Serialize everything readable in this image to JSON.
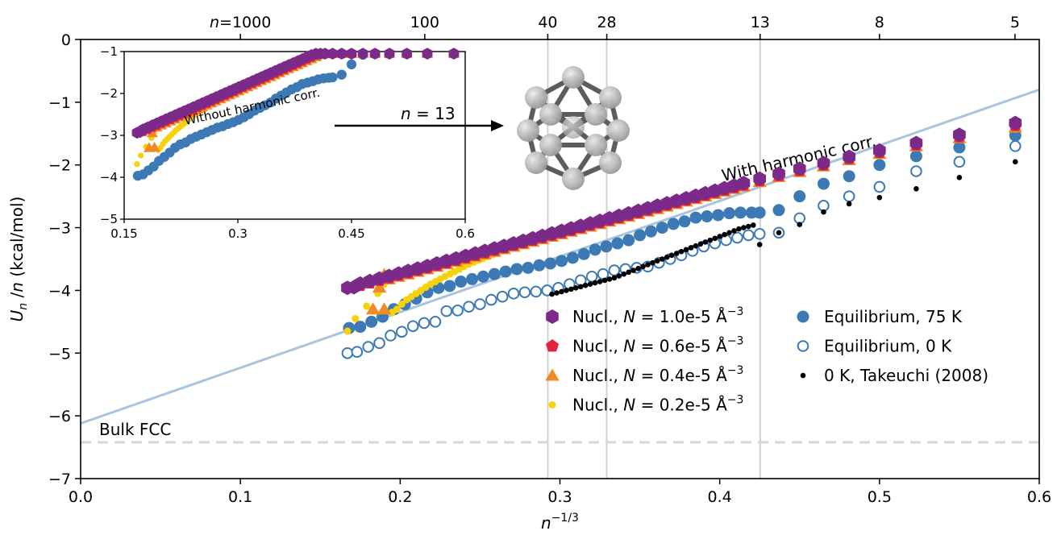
{
  "chart_data": {
    "type": "scatter",
    "xlabel": "n",
    "xlabel_sup": "−1/3",
    "ylabel": "U",
    "ylabel_sub": "n",
    "ylabel_rest": " /n (kcal/mol)",
    "xlim": [
      0,
      0.6
    ],
    "ylim": [
      -7,
      0
    ],
    "xticks": [
      "0.0",
      "0.1",
      "0.2",
      "0.3",
      "0.4",
      "0.5",
      "0.6"
    ],
    "yticks": [
      "0",
      "−1",
      "−2",
      "−3",
      "−4",
      "−5",
      "−6",
      "−7"
    ],
    "top_axis": {
      "label_prefix": "n",
      "label_eq": "=",
      "ticks": [
        {
          "label": "1000",
          "x": 0.1
        },
        {
          "label": "100",
          "x": 0.2154
        },
        {
          "label": "40",
          "x": 0.2924
        },
        {
          "label": "28",
          "x": 0.3293
        },
        {
          "label": "13",
          "x": 0.4253
        },
        {
          "label": "8",
          "x": 0.5
        },
        {
          "label": "5",
          "x": 0.5848
        }
      ]
    },
    "vlines": [
      0.2924,
      0.3293,
      0.4253
    ],
    "bulk_fcc": {
      "label": "Bulk FCC",
      "y": -6.42
    },
    "fit_line": {
      "x": [
        0,
        0.6
      ],
      "y": [
        -6.12,
        -0.8
      ],
      "label": "With harmonic corr."
    },
    "series": [
      {
        "name": "Nucl., N = 1.0e-5 Å⁻³",
        "color": "#7b2a8a",
        "marker": "hexagon",
        "x": [
          0.167,
          0.171,
          0.175,
          0.181,
          0.187,
          0.193,
          0.199,
          0.205,
          0.211,
          0.217,
          0.223,
          0.229,
          0.235,
          0.241,
          0.247,
          0.253,
          0.259,
          0.265,
          0.271,
          0.277,
          0.283,
          0.289,
          0.295,
          0.301,
          0.307,
          0.313,
          0.319,
          0.325,
          0.331,
          0.337,
          0.343,
          0.349,
          0.355,
          0.361,
          0.367,
          0.373,
          0.379,
          0.385,
          0.391,
          0.397,
          0.403,
          0.409,
          0.415,
          0.425,
          0.437,
          0.45,
          0.465,
          0.481,
          0.5,
          0.523,
          0.55,
          0.585
        ],
        "y": [
          -3.96,
          -3.95,
          -3.89,
          -3.85,
          -3.81,
          -3.77,
          -3.73,
          -3.69,
          -3.65,
          -3.61,
          -3.57,
          -3.53,
          -3.49,
          -3.45,
          -3.41,
          -3.37,
          -3.33,
          -3.29,
          -3.25,
          -3.21,
          -3.17,
          -3.13,
          -3.09,
          -3.05,
          -3.01,
          -2.97,
          -2.93,
          -2.89,
          -2.85,
          -2.81,
          -2.77,
          -2.73,
          -2.69,
          -2.65,
          -2.61,
          -2.57,
          -2.53,
          -2.49,
          -2.45,
          -2.41,
          -2.37,
          -2.33,
          -2.29,
          -2.22,
          -2.14,
          -2.06,
          -1.97,
          -1.87,
          -1.77,
          -1.65,
          -1.52,
          -1.33
        ]
      },
      {
        "name": "Nucl., N = 0.6e-5 Å⁻³",
        "color": "#e3223c",
        "marker": "pentagon",
        "x": [
          0.175,
          0.181,
          0.187,
          0.193,
          0.199,
          0.205,
          0.211,
          0.217,
          0.223,
          0.229,
          0.235,
          0.241,
          0.247,
          0.253,
          0.259,
          0.265,
          0.271,
          0.277,
          0.283,
          0.289,
          0.295,
          0.301,
          0.307,
          0.313,
          0.319,
          0.325,
          0.331,
          0.337,
          0.343,
          0.349,
          0.355,
          0.361,
          0.367,
          0.373,
          0.379,
          0.385,
          0.391,
          0.397,
          0.403,
          0.409,
          0.415,
          0.425,
          0.437,
          0.45,
          0.465,
          0.481,
          0.5,
          0.523,
          0.55,
          0.585
        ],
        "y": [
          -3.92,
          -3.88,
          -3.84,
          -3.8,
          -3.76,
          -3.72,
          -3.68,
          -3.64,
          -3.6,
          -3.56,
          -3.52,
          -3.48,
          -3.44,
          -3.4,
          -3.36,
          -3.32,
          -3.28,
          -3.24,
          -3.2,
          -3.16,
          -3.12,
          -3.08,
          -3.04,
          -3.0,
          -2.96,
          -2.92,
          -2.88,
          -2.84,
          -2.8,
          -2.76,
          -2.72,
          -2.68,
          -2.64,
          -2.6,
          -2.56,
          -2.52,
          -2.48,
          -2.44,
          -2.4,
          -2.36,
          -2.32,
          -2.25,
          -2.17,
          -2.09,
          -2.0,
          -1.9,
          -1.8,
          -1.68,
          -1.55,
          -1.37
        ]
      },
      {
        "name": "Nucl., N = 0.4e-5 Å⁻³",
        "color": "#f28a24",
        "marker": "triangle",
        "x": [
          0.183,
          0.187,
          0.19,
          0.19,
          0.193,
          0.199,
          0.205,
          0.211,
          0.217,
          0.223,
          0.229,
          0.235,
          0.241,
          0.247,
          0.253,
          0.259,
          0.265,
          0.271,
          0.277,
          0.283,
          0.289,
          0.295,
          0.301,
          0.307,
          0.313,
          0.319,
          0.325,
          0.331,
          0.337,
          0.343,
          0.349,
          0.355,
          0.361,
          0.367,
          0.373,
          0.379,
          0.385,
          0.391,
          0.397,
          0.403,
          0.409,
          0.415,
          0.425,
          0.437,
          0.45,
          0.465,
          0.481,
          0.5,
          0.523,
          0.55,
          0.585
        ],
        "y": [
          -4.3,
          -3.95,
          -3.75,
          -4.3,
          -3.82,
          -3.78,
          -3.74,
          -3.7,
          -3.66,
          -3.62,
          -3.58,
          -3.54,
          -3.5,
          -3.46,
          -3.42,
          -3.38,
          -3.34,
          -3.3,
          -3.26,
          -3.22,
          -3.18,
          -3.14,
          -3.1,
          -3.06,
          -3.02,
          -2.98,
          -2.94,
          -2.9,
          -2.86,
          -2.82,
          -2.78,
          -2.74,
          -2.7,
          -2.66,
          -2.62,
          -2.58,
          -2.54,
          -2.5,
          -2.46,
          -2.42,
          -2.38,
          -2.34,
          -2.27,
          -2.19,
          -2.11,
          -2.02,
          -1.92,
          -1.82,
          -1.7,
          -1.57,
          -1.4
        ]
      },
      {
        "name": "Nucl., N = 0.2e-5 Å⁻³",
        "color": "#f6d20a",
        "marker": "dot",
        "x": [
          0.195,
          0.198,
          0.201,
          0.204,
          0.207,
          0.21,
          0.213,
          0.216,
          0.219,
          0.222,
          0.225,
          0.228,
          0.231,
          0.234,
          0.237,
          0.24,
          0.243,
          0.246,
          0.249,
          0.252,
          0.255,
          0.258,
          0.261,
          0.264,
          0.267,
          0.27,
          0.273,
          0.276,
          0.279,
          0.282,
          0.285,
          0.288,
          0.291,
          0.294,
          0.297,
          0.3,
          0.303,
          0.306,
          0.309,
          0.312,
          0.315,
          0.318,
          0.321,
          0.324,
          0.327,
          0.33,
          0.333,
          0.336,
          0.339,
          0.342,
          0.345,
          0.348,
          0.351,
          0.354,
          0.357,
          0.36,
          0.363,
          0.366,
          0.369,
          0.372,
          0.375,
          0.378,
          0.381,
          0.384,
          0.387,
          0.39,
          0.393,
          0.396,
          0.399,
          0.402,
          0.405,
          0.408,
          0.411,
          0.414,
          0.417,
          0.425,
          0.437,
          0.45,
          0.465,
          0.481,
          0.5,
          0.523,
          0.55,
          0.585,
          0.167,
          0.172,
          0.179,
          0.186,
          0.19
        ],
        "y": [
          -4.35,
          -4.3,
          -4.22,
          -4.15,
          -4.1,
          -4.05,
          -4.0,
          -3.95,
          -3.9,
          -3.86,
          -3.82,
          -3.78,
          -3.74,
          -3.7,
          -3.66,
          -3.62,
          -3.58,
          -3.55,
          -3.52,
          -3.49,
          -3.46,
          -3.43,
          -3.4,
          -3.37,
          -3.34,
          -3.31,
          -3.28,
          -3.25,
          -3.22,
          -3.2,
          -3.18,
          -3.16,
          -3.14,
          -3.12,
          -3.1,
          -3.08,
          -3.06,
          -3.04,
          -3.02,
          -3.0,
          -2.98,
          -2.96,
          -2.94,
          -2.92,
          -2.9,
          -2.88,
          -2.86,
          -2.84,
          -2.82,
          -2.8,
          -2.78,
          -2.76,
          -2.74,
          -2.72,
          -2.7,
          -2.68,
          -2.66,
          -2.64,
          -2.62,
          -2.6,
          -2.58,
          -2.56,
          -2.54,
          -2.52,
          -2.5,
          -2.48,
          -2.46,
          -2.44,
          -2.42,
          -2.4,
          -2.38,
          -2.36,
          -2.34,
          -2.32,
          -2.3,
          -2.28,
          -2.21,
          -2.13,
          -2.04,
          -1.95,
          -1.84,
          -1.72,
          -1.59,
          -1.43,
          -4.65,
          -4.45,
          -4.25,
          -4.05,
          -3.9
        ]
      },
      {
        "name": "Equilibrium, 75 K",
        "color": "#3d7ab5",
        "marker": "circle",
        "x": [
          0.168,
          0.175,
          0.182,
          0.189,
          0.196,
          0.203,
          0.21,
          0.217,
          0.224,
          0.231,
          0.238,
          0.245,
          0.252,
          0.259,
          0.266,
          0.273,
          0.28,
          0.287,
          0.294,
          0.301,
          0.308,
          0.315,
          0.322,
          0.329,
          0.336,
          0.343,
          0.35,
          0.357,
          0.364,
          0.371,
          0.378,
          0.385,
          0.392,
          0.399,
          0.406,
          0.413,
          0.42,
          0.425,
          0.437,
          0.45,
          0.465,
          0.481,
          0.5,
          0.523,
          0.55,
          0.585
        ],
        "y": [
          -4.6,
          -4.58,
          -4.5,
          -4.42,
          -4.3,
          -4.22,
          -4.13,
          -4.03,
          -3.96,
          -3.93,
          -3.86,
          -3.82,
          -3.78,
          -3.74,
          -3.7,
          -3.66,
          -3.64,
          -3.6,
          -3.57,
          -3.53,
          -3.48,
          -3.42,
          -3.35,
          -3.3,
          -3.25,
          -3.2,
          -3.12,
          -3.06,
          -3.0,
          -2.94,
          -2.9,
          -2.84,
          -2.82,
          -2.8,
          -2.77,
          -2.76,
          -2.76,
          -2.76,
          -2.72,
          -2.5,
          -2.3,
          -2.18,
          -2.0,
          -1.86,
          -1.72,
          -1.53
        ]
      },
      {
        "name": "Equilibrium, 0 K",
        "color": "#3d7ab5",
        "marker": "circle-open",
        "x": [
          0.167,
          0.173,
          0.18,
          0.187,
          0.194,
          0.201,
          0.208,
          0.215,
          0.222,
          0.229,
          0.236,
          0.243,
          0.25,
          0.257,
          0.264,
          0.271,
          0.278,
          0.285,
          0.292,
          0.299,
          0.306,
          0.313,
          0.32,
          0.327,
          0.334,
          0.341,
          0.348,
          0.355,
          0.362,
          0.369,
          0.376,
          0.383,
          0.39,
          0.397,
          0.404,
          0.411,
          0.418,
          0.425,
          0.437,
          0.45,
          0.465,
          0.481,
          0.5,
          0.523,
          0.55,
          0.585
        ],
        "y": [
          -5.0,
          -4.98,
          -4.9,
          -4.84,
          -4.72,
          -4.66,
          -4.57,
          -4.52,
          -4.5,
          -4.33,
          -4.32,
          -4.26,
          -4.22,
          -4.15,
          -4.1,
          -4.05,
          -4.03,
          -4.02,
          -4.0,
          -3.96,
          -3.9,
          -3.84,
          -3.78,
          -3.74,
          -3.68,
          -3.66,
          -3.64,
          -3.62,
          -3.56,
          -3.5,
          -3.44,
          -3.37,
          -3.3,
          -3.25,
          -3.2,
          -3.16,
          -3.12,
          -3.1,
          -3.08,
          -2.85,
          -2.65,
          -2.5,
          -2.35,
          -2.1,
          -1.95,
          -1.7
        ]
      },
      {
        "name": "0 K, Takeuchi (2008)",
        "color": "#000000",
        "marker": "dot-small",
        "x": [
          0.295,
          0.298,
          0.301,
          0.304,
          0.307,
          0.31,
          0.313,
          0.316,
          0.319,
          0.322,
          0.325,
          0.328,
          0.331,
          0.334,
          0.337,
          0.34,
          0.343,
          0.346,
          0.349,
          0.352,
          0.355,
          0.358,
          0.361,
          0.364,
          0.367,
          0.37,
          0.373,
          0.376,
          0.379,
          0.382,
          0.385,
          0.388,
          0.391,
          0.394,
          0.397,
          0.4,
          0.403,
          0.406,
          0.409,
          0.412,
          0.415,
          0.418,
          0.421,
          0.425,
          0.437,
          0.45,
          0.465,
          0.481,
          0.5,
          0.523,
          0.55,
          0.585
        ],
        "y": [
          -4.06,
          -4.04,
          -4.02,
          -4.0,
          -3.98,
          -3.96,
          -3.94,
          -3.92,
          -3.9,
          -3.88,
          -3.86,
          -3.84,
          -3.82,
          -3.8,
          -3.77,
          -3.74,
          -3.71,
          -3.68,
          -3.65,
          -3.62,
          -3.59,
          -3.56,
          -3.53,
          -3.5,
          -3.47,
          -3.44,
          -3.41,
          -3.38,
          -3.35,
          -3.32,
          -3.29,
          -3.26,
          -3.23,
          -3.2,
          -3.17,
          -3.14,
          -3.11,
          -3.08,
          -3.05,
          -3.02,
          -3.0,
          -2.98,
          -2.96,
          -3.27,
          -3.08,
          -2.95,
          -2.75,
          -2.62,
          -2.52,
          -2.38,
          -2.2,
          -1.95
        ]
      }
    ],
    "legend": {
      "left": [
        {
          "text": "Nucl., ",
          "ital": "N",
          "rest": " = 1.0e-5 Å",
          "sup": "−3"
        },
        {
          "text": "Nucl., ",
          "ital": "N",
          "rest": " = 0.6e-5 Å",
          "sup": "−3"
        },
        {
          "text": "Nucl., ",
          "ital": "N",
          "rest": " = 0.4e-5 Å",
          "sup": "−3"
        },
        {
          "text": "Nucl., ",
          "ital": "N",
          "rest": " = 0.2e-5 Å",
          "sup": "−3"
        }
      ],
      "right": [
        {
          "text": "Equilibrium, 75 K"
        },
        {
          "text": "Equilibrium, 0 K"
        },
        {
          "text": "0 K, Takeuchi (2008)"
        }
      ]
    },
    "inset": {
      "xlim": [
        0.15,
        0.6
      ],
      "ylim": [
        -5,
        -1
      ],
      "xticks": [
        "0.15",
        "0.3",
        "0.45",
        "0.6"
      ],
      "yticks": [
        "−1",
        "−2",
        "−3",
        "−4",
        "−5"
      ],
      "annotation": "Without harmonic corr.",
      "arrow_label": "n = 13"
    }
  }
}
